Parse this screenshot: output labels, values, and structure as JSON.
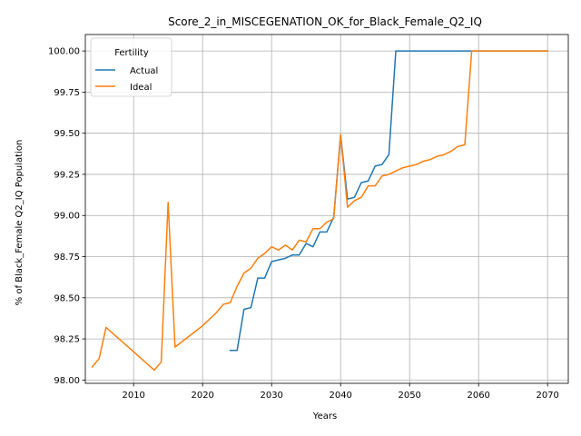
{
  "chart_data": {
    "type": "line",
    "title": "Score_2_in_MISCEGENATION_OK_for_Black_Female_Q2_IQ",
    "xlabel": "Years",
    "ylabel": "% of Black_Female Q2_IQ Population",
    "xlim": [
      2003,
      2073
    ],
    "ylim": [
      97.98,
      100.1
    ],
    "xticks": [
      2010,
      2020,
      2030,
      2040,
      2050,
      2060,
      2070
    ],
    "yticks": [
      98.0,
      98.25,
      98.5,
      98.75,
      99.0,
      99.25,
      99.5,
      99.75,
      100.0
    ],
    "grid": true,
    "legend": {
      "title": "Fertility",
      "placement": "top-left"
    },
    "series": [
      {
        "name": "Actual",
        "color": "#1f77b4",
        "x": [
          2024,
          2025,
          2026,
          2027,
          2028,
          2029,
          2030,
          2031,
          2032,
          2033,
          2034,
          2035,
          2036,
          2037,
          2038,
          2039,
          2040,
          2041,
          2042,
          2043,
          2044,
          2045,
          2046,
          2047,
          2048,
          2049,
          2050,
          2055,
          2060,
          2065,
          2070
        ],
        "y": [
          98.18,
          98.18,
          98.43,
          98.44,
          98.62,
          98.62,
          98.72,
          98.73,
          98.74,
          98.76,
          98.76,
          98.83,
          98.81,
          98.9,
          98.9,
          98.99,
          99.49,
          99.1,
          99.11,
          99.2,
          99.21,
          99.3,
          99.31,
          99.37,
          100.0,
          100.0,
          100.0,
          100.0,
          100.0,
          100.0,
          100.0
        ]
      },
      {
        "name": "Ideal",
        "color": "#ff7f0e",
        "x": [
          2004,
          2005,
          2006,
          2013,
          2014,
          2015,
          2016,
          2020,
          2022,
          2023,
          2024,
          2025,
          2026,
          2027,
          2028,
          2029,
          2030,
          2031,
          2032,
          2033,
          2034,
          2035,
          2036,
          2037,
          2038,
          2039,
          2040,
          2041,
          2042,
          2043,
          2044,
          2045,
          2046,
          2047,
          2048,
          2049,
          2050,
          2051,
          2052,
          2053,
          2054,
          2055,
          2056,
          2057,
          2058,
          2059,
          2060,
          2065,
          2070
        ],
        "y": [
          98.08,
          98.13,
          98.32,
          98.06,
          98.11,
          99.08,
          98.2,
          98.33,
          98.41,
          98.46,
          98.47,
          98.57,
          98.65,
          98.68,
          98.74,
          98.77,
          98.81,
          98.79,
          98.82,
          98.79,
          98.85,
          98.84,
          98.92,
          98.92,
          98.96,
          98.98,
          99.49,
          99.05,
          99.09,
          99.11,
          99.18,
          99.18,
          99.24,
          99.25,
          99.27,
          99.29,
          99.3,
          99.31,
          99.33,
          99.34,
          99.36,
          99.37,
          99.39,
          99.42,
          99.43,
          100.0,
          100.0,
          100.0,
          100.0
        ]
      }
    ]
  }
}
